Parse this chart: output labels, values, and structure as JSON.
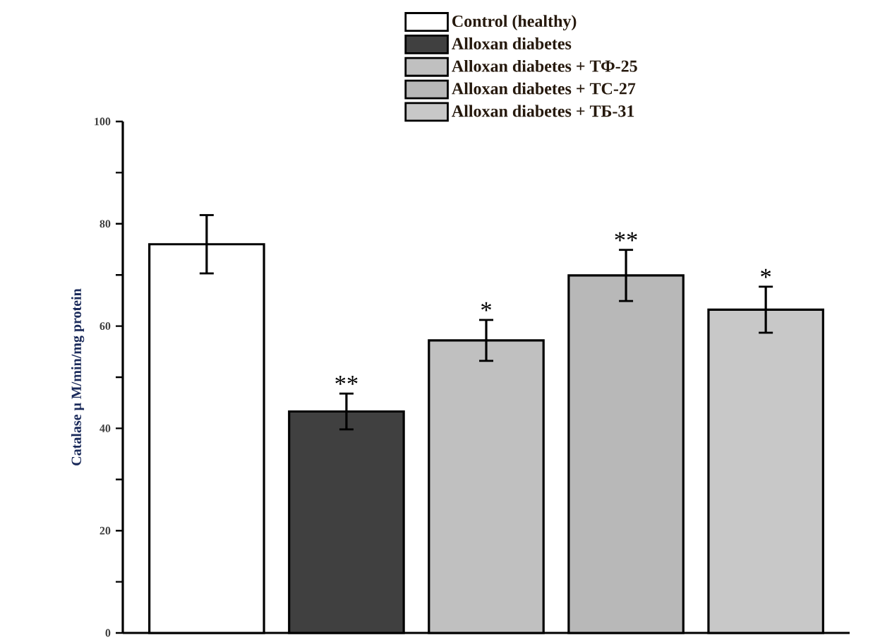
{
  "chart_data": {
    "type": "bar",
    "ylabel": "Catalase μ M/min/mg protein",
    "categories": [
      null,
      null,
      null,
      null,
      null
    ],
    "ylim": [
      0,
      100
    ],
    "yticks": [
      0,
      {
        "value": 10,
        "label": null
      },
      20,
      {
        "value": 30,
        "label": null
      },
      40,
      {
        "value": 50,
        "label": null
      },
      60,
      {
        "value": 70,
        "label": null
      },
      80,
      {
        "value": 90,
        "label": null
      },
      100
    ],
    "legend": "top",
    "series": [
      {
        "name": "Control (healthy)",
        "color": "#ffffff",
        "values": [
          76,
          null,
          null,
          null,
          null
        ],
        "errors": [
          5.7,
          null,
          null,
          null,
          null
        ]
      },
      {
        "name": "Alloxan diabetes",
        "color": "#404040",
        "values": [
          null,
          43.3,
          null,
          null,
          null
        ],
        "errors": [
          null,
          3.5,
          null,
          null,
          null
        ],
        "value_labels": [
          null,
          "**",
          null,
          null,
          null
        ]
      },
      {
        "name": "Alloxan diabetes + ТФ-25",
        "color": "#c0c0c0",
        "values": [
          null,
          null,
          57.2,
          null,
          null
        ],
        "errors": [
          null,
          null,
          4,
          null,
          null
        ],
        "value_labels": [
          null,
          null,
          "*",
          null,
          null
        ]
      },
      {
        "name": "Alloxan diabetes + ТС-27",
        "color": "#b8b8b8",
        "values": [
          null,
          null,
          null,
          69.9,
          null
        ],
        "errors": [
          null,
          null,
          null,
          5,
          null
        ],
        "value_labels": [
          null,
          null,
          null,
          "**",
          null
        ]
      },
      {
        "name": "Alloxan diabetes + ТБ-31",
        "color": "#c8c8c8",
        "values": [
          null,
          null,
          null,
          null,
          63.2
        ],
        "errors": [
          null,
          null,
          null,
          null,
          4.5
        ],
        "value_labels": [
          null,
          null,
          null,
          null,
          "*"
        ]
      }
    ]
  }
}
